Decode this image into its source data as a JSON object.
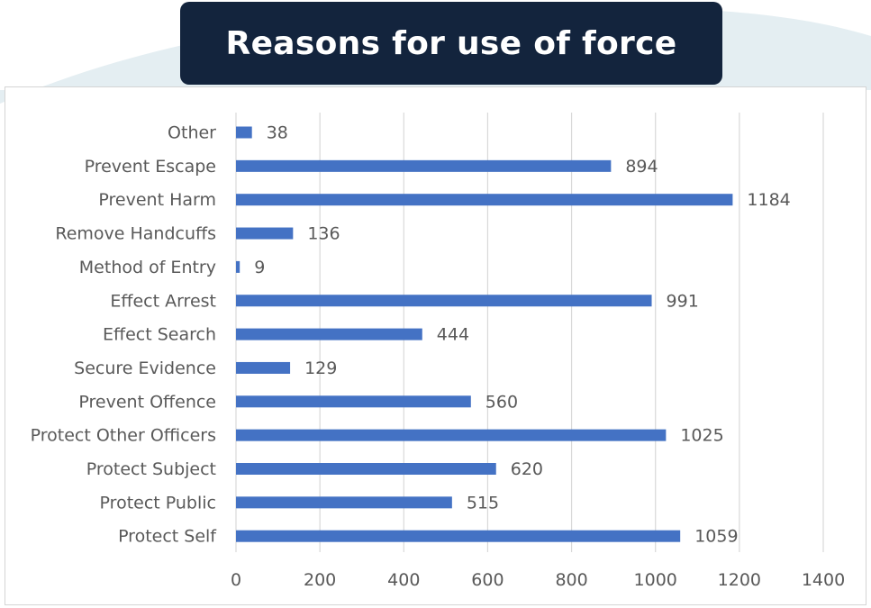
{
  "title": "Reasons for use of force",
  "colors": {
    "bar": "#4472c4",
    "title_bg": "#13243d",
    "gridline": "#d9d9d9",
    "label": "#595959"
  },
  "chart_data": {
    "type": "bar",
    "orientation": "horizontal",
    "categories": [
      "Other",
      "Prevent Escape",
      "Prevent Harm",
      "Remove Handcuffs",
      "Method of Entry",
      "Effect Arrest",
      "Effect Search",
      "Secure Evidence",
      "Prevent Offence",
      "Protect Other Officers",
      "Protect Subject",
      "Protect Public",
      "Protect Self"
    ],
    "values": [
      38,
      894,
      1184,
      136,
      9,
      991,
      444,
      129,
      560,
      1025,
      620,
      515,
      1059
    ],
    "xlim": [
      0,
      1400
    ],
    "xticks": [
      0,
      200,
      400,
      600,
      800,
      1000,
      1200,
      1400
    ],
    "grid": "vertical",
    "legend": "none",
    "data_labels": true
  }
}
